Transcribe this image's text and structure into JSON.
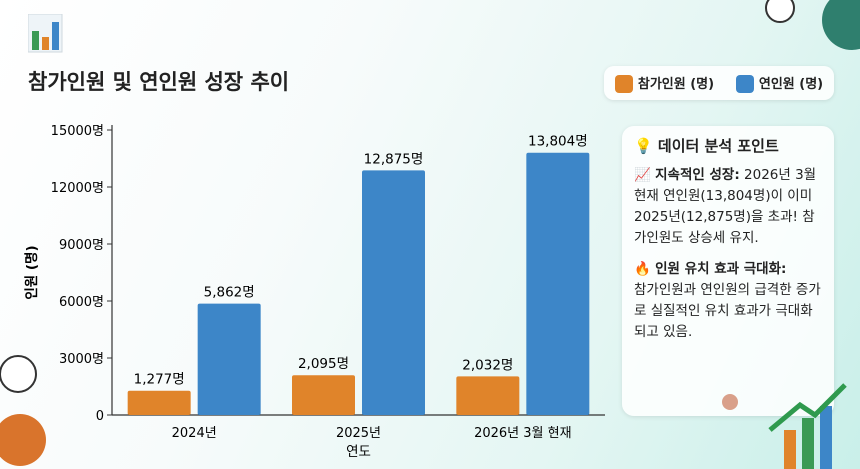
{
  "header": {
    "title": "참가인원 및 연인원 성장 추이",
    "icon": "bar-chart-icon"
  },
  "legend": {
    "items": [
      {
        "label": "참가인원 (명)",
        "color": "#e0842a"
      },
      {
        "label": "연인원 (명)",
        "color": "#3d86c8"
      }
    ]
  },
  "panel": {
    "title": "데이터 분석 포인트",
    "title_icon": "lightbulb-icon",
    "point1_heading": "지속적인 성장:",
    "point1_icon": "chart-up-icon",
    "point1_text": " 2026년 3월 현재 연인원(13,804명)이 이미 2025년(12,875명)을 초과! 참가인원도 상승세 유지.",
    "point2_heading": "인원 유치 효과 극대화:",
    "point2_icon": "fire-icon",
    "point2_text": "참가인원과 연인원의 급격한 증가로 실질적인 유치 효과가 극대화되고 있음."
  },
  "chart_data": {
    "type": "bar",
    "title": "참가인원 및 연인원 성장 추이",
    "xlabel": "연도",
    "ylabel": "인원 (명)",
    "categories": [
      "2024년",
      "2025년",
      "2026년 3월 현재"
    ],
    "series": [
      {
        "name": "참가인원 (명)",
        "color": "#e0842a",
        "values": [
          1277,
          2095,
          2032
        ],
        "labels": [
          "1,277명",
          "2,095명",
          "2,032명"
        ]
      },
      {
        "name": "연인원 (명)",
        "color": "#3d86c8",
        "values": [
          5862,
          12875,
          13804
        ],
        "labels": [
          "5,862명",
          "12,875명",
          "13,804명"
        ]
      }
    ],
    "ylim": [
      0,
      15000
    ],
    "yticks": [
      0,
      3000,
      6000,
      9000,
      12000,
      15000
    ],
    "ytick_labels": [
      "0",
      "3000명",
      "6000명",
      "9000명",
      "12000명",
      "15000명"
    ],
    "grid": false,
    "legend": "top-right"
  }
}
